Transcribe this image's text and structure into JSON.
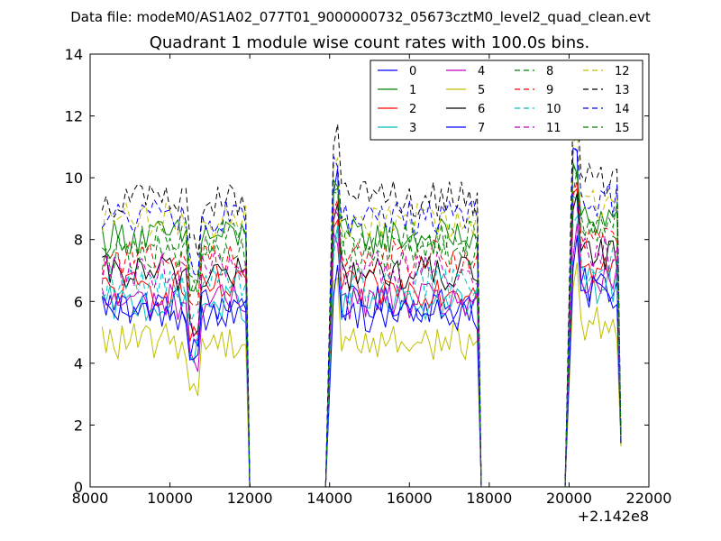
{
  "chart_data": {
    "type": "line",
    "suptitle": "Data file: modeM0/AS1A02_077T01_9000000732_05673cztM0_level2_quad_clean.evt",
    "title": "Quadrant 1 module wise count rates with 100.0s bins.",
    "xlabel": "",
    "ylabel": "",
    "xlim": [
      8000,
      22000
    ],
    "ylim": [
      0,
      14
    ],
    "x_offset_label": "+2.142e8",
    "x_ticks": [
      "8000",
      "10000",
      "12000",
      "14000",
      "16000",
      "18000",
      "20000",
      "22000"
    ],
    "y_ticks": [
      "0",
      "2",
      "4",
      "6",
      "8",
      "10",
      "12",
      "14"
    ],
    "legend_position": "top-right",
    "legend_columns": 4,
    "segments": [
      {
        "start": 8300,
        "end": 11900,
        "step": 100
      },
      {
        "start": 14100,
        "end": 17700,
        "step": 100
      },
      {
        "start": 20100,
        "end": 21200,
        "step": 100
      }
    ],
    "edges": [
      [
        8300,
        12000,
        14000,
        17900,
        19900,
        21300
      ],
      [
        8300,
        12000,
        14000,
        17900,
        19900,
        21300
      ]
    ],
    "series": [
      {
        "name": "0",
        "color": "#0000ff",
        "dash": "solid",
        "level": 5.9,
        "peak": 10.8
      },
      {
        "name": "1",
        "color": "#008000",
        "dash": "solid",
        "level": 8.1,
        "peak": 10.2
      },
      {
        "name": "2",
        "color": "#ff0000",
        "dash": "solid",
        "level": 6.4,
        "peak": 9.1
      },
      {
        "name": "3",
        "color": "#00bfbf",
        "dash": "solid",
        "level": 5.9,
        "peak": 8.9
      },
      {
        "name": "4",
        "color": "#bf00bf",
        "dash": "solid",
        "level": 6.0,
        "peak": 8.3
      },
      {
        "name": "5",
        "color": "#bfbf00",
        "dash": "solid",
        "level": 4.7,
        "peak": 7.2
      },
      {
        "name": "6",
        "color": "#000000",
        "dash": "solid",
        "level": 6.9,
        "peak": 9.6
      },
      {
        "name": "7",
        "color": "#0000ff",
        "dash": "solid",
        "level": 5.6,
        "peak": 7.6
      },
      {
        "name": "8",
        "color": "#008000",
        "dash": "dashed",
        "level": 7.6,
        "peak": 9.9
      },
      {
        "name": "9",
        "color": "#ff0000",
        "dash": "dashed",
        "level": 7.4,
        "peak": 9.7
      },
      {
        "name": "10",
        "color": "#00bfbf",
        "dash": "dashed",
        "level": 6.6,
        "peak": 8.7
      },
      {
        "name": "11",
        "color": "#bf00bf",
        "dash": "dashed",
        "level": 7.0,
        "peak": 9.2
      },
      {
        "name": "12",
        "color": "#bfbf00",
        "dash": "dashed",
        "level": 8.6,
        "peak": 11.0
      },
      {
        "name": "13",
        "color": "#000000",
        "dash": "dashed",
        "level": 9.3,
        "peak": 12.1
      },
      {
        "name": "14",
        "color": "#0000ff",
        "dash": "dashed",
        "level": 8.7,
        "peak": 10.7
      },
      {
        "name": "15",
        "color": "#008000",
        "dash": "dashed",
        "level": 8.0,
        "peak": 10.0
      }
    ]
  }
}
